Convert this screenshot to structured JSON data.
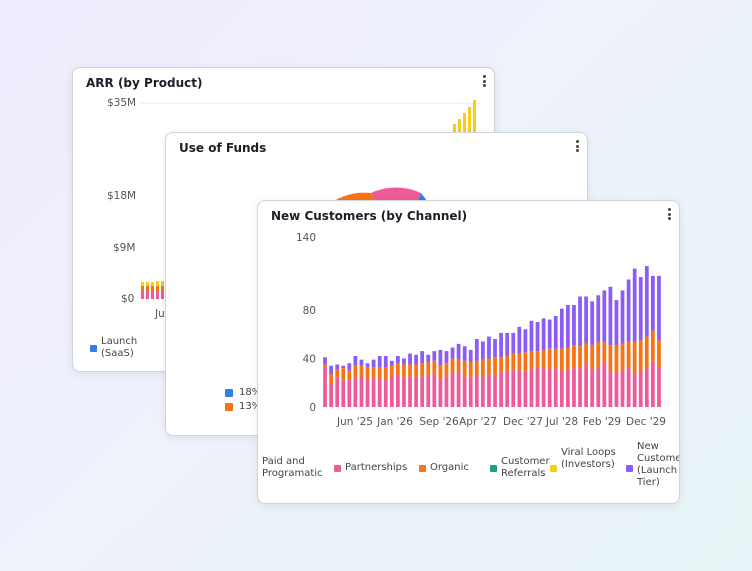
{
  "cards": {
    "arr": {
      "title": "ARR (by Product)",
      "y_ticks": [
        "$35M",
        "$18M",
        "$9M",
        "$0"
      ],
      "x_tick_partial": "Ju",
      "legend": [
        {
          "label": "Launch (SaaS)",
          "color": "#2f80ed"
        }
      ]
    },
    "funds": {
      "title": "Use of Funds",
      "legend": [
        {
          "label": "18%",
          "color": "#2f80ed"
        },
        {
          "label": "13%",
          "color": "#f97316"
        }
      ]
    },
    "customers": {
      "title": "New Customers (by Channel)"
    }
  },
  "chart_data": [
    {
      "type": "bar",
      "title": "New Customers (by Channel)",
      "stacked": true,
      "ylim": [
        0,
        140
      ],
      "y_ticks": [
        0,
        40,
        80,
        140
      ],
      "x_tick_labels": [
        "Jun '25",
        "Jan '26",
        "Sep '26",
        "Apr '27",
        "Dec '27",
        "Jul '28",
        "Feb '29",
        "Dec '29"
      ],
      "series": [
        {
          "name": "Paid and Programatic",
          "color": "#e5e7eb",
          "values": [
            0,
            0,
            0,
            0,
            0,
            0,
            0,
            0,
            0,
            0,
            0,
            0,
            0,
            0,
            0,
            0,
            0,
            0,
            0,
            0,
            0,
            0,
            0,
            0,
            0,
            0,
            0,
            0,
            0,
            0,
            0,
            0,
            0,
            0,
            0,
            0,
            0,
            0,
            0,
            0,
            0,
            0,
            0,
            0,
            0,
            0,
            0,
            0,
            0,
            0,
            0,
            0,
            0,
            0,
            0,
            0
          ]
        },
        {
          "name": "Partnerships",
          "color": "#ef5b98",
          "values": [
            33,
            19,
            24,
            22,
            22,
            24,
            26,
            23,
            24,
            23,
            23,
            26,
            27,
            24,
            25,
            24,
            25,
            26,
            27,
            23,
            25,
            28,
            30,
            25,
            24,
            26,
            25,
            27,
            26,
            29,
            29,
            31,
            30,
            29,
            31,
            33,
            32,
            31,
            32,
            30,
            31,
            32,
            32,
            35,
            31,
            33,
            37,
            30,
            28,
            31,
            32,
            28,
            30,
            32,
            38,
            33
          ]
        },
        {
          "name": "Organic",
          "color": "#f97316",
          "values": [
            2,
            8,
            7,
            10,
            8,
            10,
            8,
            10,
            9,
            10,
            10,
            8,
            9,
            11,
            10,
            11,
            11,
            11,
            11,
            11,
            11,
            12,
            9,
            13,
            13,
            12,
            14,
            13,
            15,
            12,
            13,
            13,
            14,
            16,
            15,
            13,
            15,
            17,
            16,
            18,
            18,
            19,
            18,
            17,
            20,
            21,
            17,
            21,
            23,
            21,
            22,
            26,
            25,
            26,
            25,
            22
          ]
        },
        {
          "name": "Customer Referrals",
          "color": "#14a58a",
          "values": [
            0,
            0,
            0,
            0,
            0,
            0,
            0,
            0,
            0,
            0,
            0,
            0,
            0,
            0,
            0,
            0,
            0,
            0,
            0,
            0,
            0,
            0,
            0,
            0,
            0,
            0,
            0,
            0,
            0,
            0,
            0,
            0,
            0,
            0,
            0,
            0,
            0,
            0,
            0,
            0,
            0,
            0,
            0,
            0,
            0,
            0,
            0,
            0,
            0,
            0,
            0,
            0,
            0,
            0,
            0,
            0
          ]
        },
        {
          "name": "Viral Loops (Investors)",
          "color": "#facc15",
          "values": [
            0,
            0,
            0,
            0,
            0,
            0,
            0,
            0,
            0,
            0,
            0,
            0,
            0,
            0,
            0,
            0,
            0,
            0,
            0,
            0,
            0,
            0,
            0,
            0,
            0,
            0,
            0,
            0,
            0,
            0,
            0,
            0,
            0,
            0,
            0,
            0,
            0,
            0,
            0,
            0,
            0,
            0,
            0,
            0,
            0,
            0,
            0,
            0,
            0,
            0,
            0,
            0,
            0,
            0,
            0,
            0
          ]
        },
        {
          "name": "New Customers (Launch Tier)",
          "color": "#8b5cf6",
          "values": [
            6,
            7,
            4,
            2,
            6,
            8,
            5,
            3,
            6,
            9,
            9,
            4,
            6,
            5,
            9,
            8,
            10,
            6,
            8,
            13,
            10,
            9,
            13,
            12,
            10,
            18,
            15,
            18,
            15,
            20,
            19,
            17,
            22,
            19,
            25,
            24,
            26,
            24,
            27,
            33,
            35,
            33,
            41,
            39,
            36,
            38,
            42,
            48,
            37,
            44,
            51,
            60,
            52,
            58,
            45,
            53
          ]
        }
      ]
    },
    {
      "type": "bar",
      "title": "ARR (by Product)",
      "partial": true,
      "y_ticks": [
        "$0",
        "$9M",
        "$18M",
        "$35M"
      ],
      "ylim": [
        0,
        35
      ],
      "series": [
        {
          "name": "Launch (SaaS)",
          "color": "#2f80ed",
          "values": []
        }
      ]
    },
    {
      "type": "pie",
      "title": "Use of Funds",
      "partial": true,
      "visible_labels": [
        "18%",
        "13%"
      ]
    }
  ],
  "customers_legend": [
    {
      "label": "Paid and Programatic",
      "color": null
    },
    {
      "label": "Partnerships",
      "color": "#ef5b98"
    },
    {
      "label": "Organic",
      "color": "#f97316"
    },
    {
      "label": "Customer Referrals",
      "color": "#14a58a"
    },
    {
      "label": "Viral Loops (Investors)",
      "color": "#facc15"
    },
    {
      "label": "New Customers (Launch Tier)",
      "color": "#8b5cf6"
    }
  ]
}
